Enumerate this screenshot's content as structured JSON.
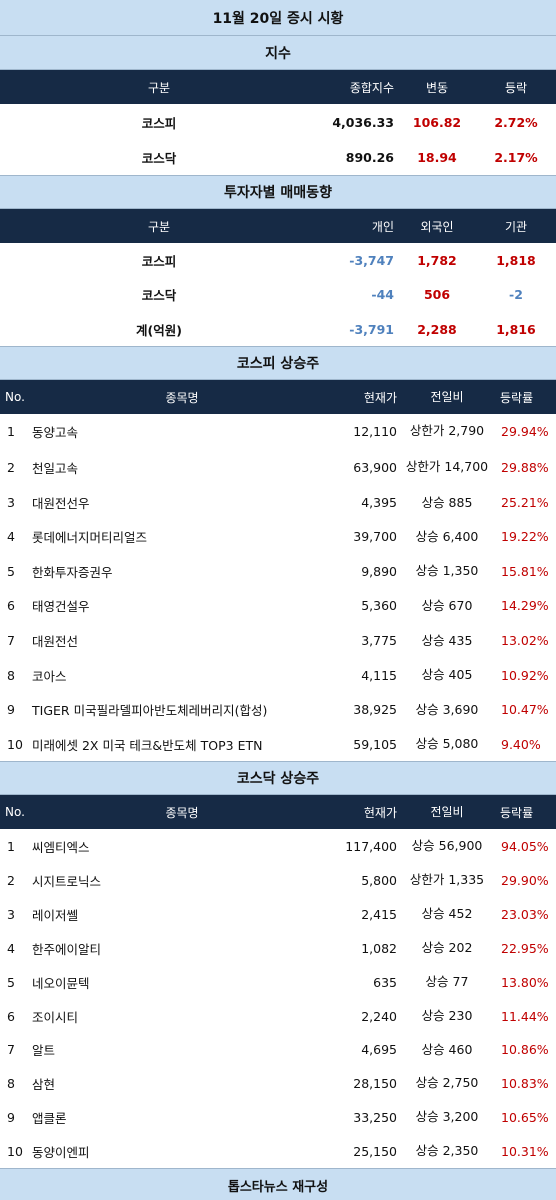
{
  "title": "11월 20일 증시 시황",
  "index_section": {
    "heading": "지수",
    "headers": [
      "구분",
      "종합지수",
      "변동",
      "등락"
    ],
    "rows": [
      {
        "name": "코스피",
        "value": "4,036.33",
        "change": "106.82",
        "rate": "2.72%"
      },
      {
        "name": "코스닥",
        "value": "890.26",
        "change": "18.94",
        "rate": "2.17%"
      }
    ]
  },
  "investor_section": {
    "heading": "투자자별 매매동향",
    "headers": [
      "구분",
      "개인",
      "외국인",
      "기관"
    ],
    "rows": [
      {
        "name": "코스피",
        "individual": "-3,747",
        "foreign": "1,782",
        "institution": "1,818"
      },
      {
        "name": "코스닥",
        "individual": "-44",
        "foreign": "506",
        "institution": "-2"
      },
      {
        "name": "계(억원)",
        "individual": "-3,791",
        "foreign": "2,288",
        "institution": "1,816"
      }
    ]
  },
  "kospi_section": {
    "heading": "코스피 상승주",
    "headers": [
      "No.",
      "종목명",
      "현재가",
      "전일비",
      "등락률"
    ],
    "rows": [
      {
        "no": "1",
        "name": "동양고속",
        "price": "12,110",
        "change": "상한가 2,790",
        "rate": "29.94%"
      },
      {
        "no": "2",
        "name": "천일고속",
        "price": "63,900",
        "change": "상한가 14,700",
        "rate": "29.88%"
      },
      {
        "no": "3",
        "name": "대원전선우",
        "price": "4,395",
        "change": "상승 885",
        "rate": "25.21%"
      },
      {
        "no": "4",
        "name": "롯데에너지머티리얼즈",
        "price": "39,700",
        "change": "상승 6,400",
        "rate": "19.22%"
      },
      {
        "no": "5",
        "name": "한화투자증권우",
        "price": "9,890",
        "change": "상승 1,350",
        "rate": "15.81%"
      },
      {
        "no": "6",
        "name": "태영건설우",
        "price": "5,360",
        "change": "상승 670",
        "rate": "14.29%"
      },
      {
        "no": "7",
        "name": "대원전선",
        "price": "3,775",
        "change": "상승 435",
        "rate": "13.02%"
      },
      {
        "no": "8",
        "name": "코아스",
        "price": "4,115",
        "change": "상승 405",
        "rate": "10.92%"
      },
      {
        "no": "9",
        "name": "TIGER 미국필라델피아반도체레버리지(합성)",
        "price": "38,925",
        "change": "상승 3,690",
        "rate": "10.47%"
      },
      {
        "no": "10",
        "name": "미래에셋 2X 미국 테크&반도체 TOP3 ETN",
        "price": "59,105",
        "change": "상승 5,080",
        "rate": "9.40%"
      }
    ]
  },
  "kosdaq_section": {
    "heading": "코스닥 상승주",
    "headers": [
      "No.",
      "종목명",
      "현재가",
      "전일비",
      "등락률"
    ],
    "rows": [
      {
        "no": "1",
        "name": "씨엠티엑스",
        "price": "117,400",
        "change": "상승 56,900",
        "rate": "94.05%"
      },
      {
        "no": "2",
        "name": "시지트로닉스",
        "price": "5,800",
        "change": "상한가 1,335",
        "rate": "29.90%"
      },
      {
        "no": "3",
        "name": "레이저쎌",
        "price": "2,415",
        "change": "상승 452",
        "rate": "23.03%"
      },
      {
        "no": "4",
        "name": "한주에이알티",
        "price": "1,082",
        "change": "상승 202",
        "rate": "22.95%"
      },
      {
        "no": "5",
        "name": "네오이뮨텍",
        "price": "635",
        "change": "상승 77",
        "rate": "13.80%"
      },
      {
        "no": "6",
        "name": "조이시티",
        "price": "2,240",
        "change": "상승 230",
        "rate": "11.44%"
      },
      {
        "no": "7",
        "name": "알트",
        "price": "4,695",
        "change": "상승 460",
        "rate": "10.86%"
      },
      {
        "no": "8",
        "name": "삼현",
        "price": "28,150",
        "change": "상승 2,750",
        "rate": "10.83%"
      },
      {
        "no": "9",
        "name": "앱클론",
        "price": "33,250",
        "change": "상승 3,200",
        "rate": "10.65%"
      },
      {
        "no": "10",
        "name": "동양이엔피",
        "price": "25,150",
        "change": "상승 2,350",
        "rate": "10.31%"
      }
    ]
  },
  "footer": "톱스타뉴스 재구성",
  "colors": {
    "band": "#c8def2",
    "header": "#162a45",
    "up": "#c00000",
    "down": "#4f81bd"
  }
}
